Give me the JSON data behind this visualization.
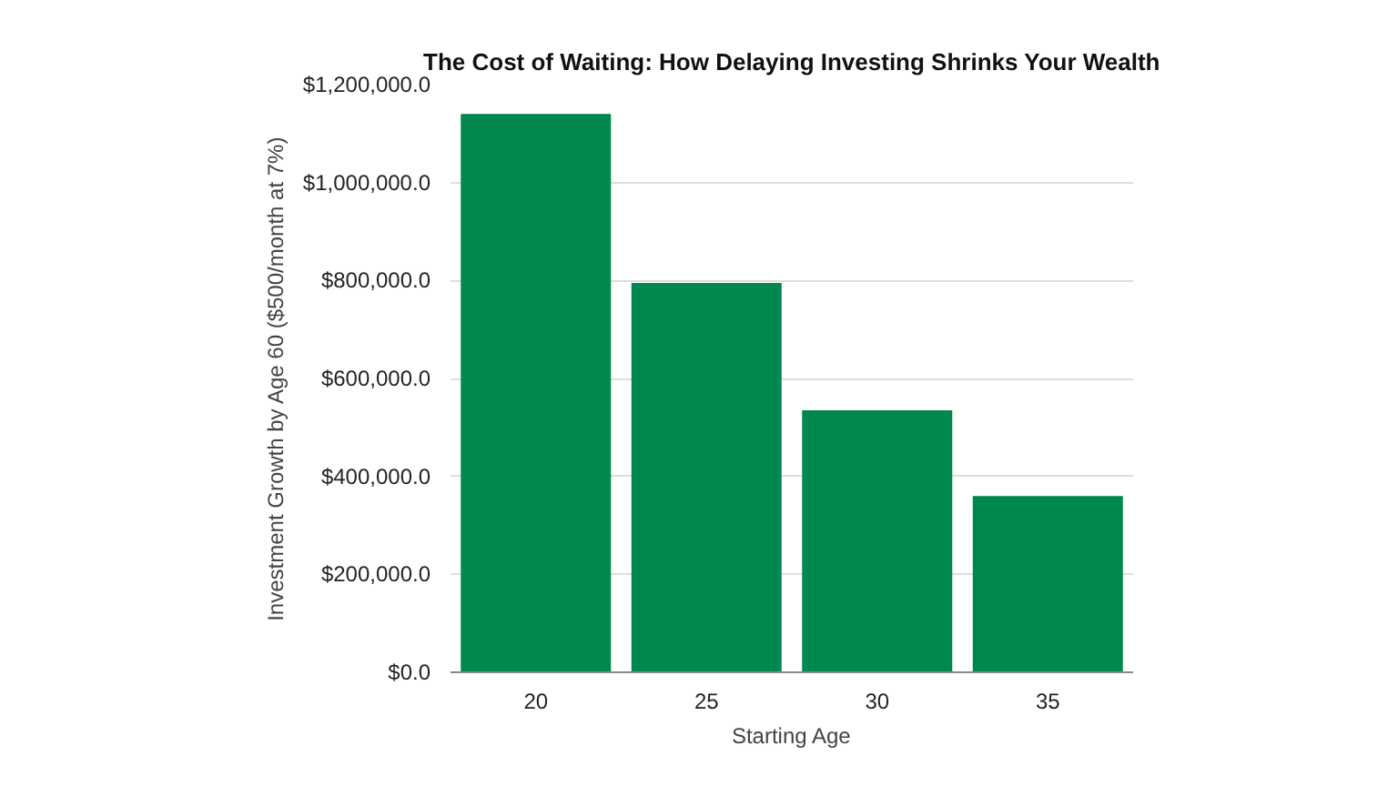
{
  "chart_data": {
    "type": "bar",
    "title": "The Cost of Waiting: How Delaying Investing Shrinks Your Wealth",
    "xlabel": "Starting Age",
    "ylabel": "Investment Growth by Age 60 ($500/month at 7%)",
    "categories": [
      "20",
      "25",
      "30",
      "35"
    ],
    "series": [
      {
        "color": "#00884f",
        "values": [
          1140000,
          795000,
          535000,
          360000
        ]
      }
    ],
    "ylim": [
      0,
      1200000
    ],
    "yticks": [
      {
        "value": 0,
        "label": "$0.0"
      },
      {
        "value": 200000,
        "label": "$200,000.0"
      },
      {
        "value": 400000,
        "label": "$400,000.0"
      },
      {
        "value": 600000,
        "label": "$600,000.0"
      },
      {
        "value": 800000,
        "label": "$800,000.0"
      },
      {
        "value": 1000000,
        "label": "$1,000,000.0"
      },
      {
        "value": 1200000,
        "label": "$1,200,000.0"
      }
    ],
    "grid": "y"
  }
}
